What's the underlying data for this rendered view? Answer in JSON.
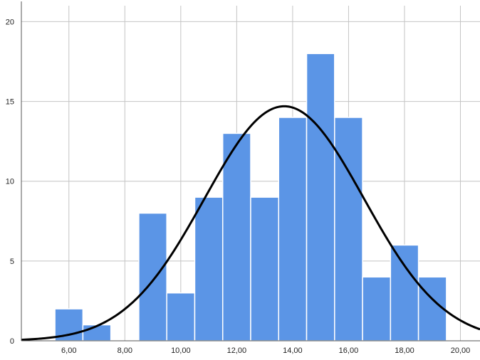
{
  "chart_data": {
    "type": "bar",
    "subtype": "histogram",
    "title": "",
    "xlabel": "",
    "ylabel": "",
    "bin_width": 1,
    "bins": [
      {
        "start": 5.5,
        "end": 6.5,
        "count": 2
      },
      {
        "start": 6.5,
        "end": 7.5,
        "count": 1
      },
      {
        "start": 7.5,
        "end": 8.5,
        "count": 0
      },
      {
        "start": 8.5,
        "end": 9.5,
        "count": 8
      },
      {
        "start": 9.5,
        "end": 10.5,
        "count": 3
      },
      {
        "start": 10.5,
        "end": 11.5,
        "count": 9
      },
      {
        "start": 11.5,
        "end": 12.5,
        "count": 13
      },
      {
        "start": 12.5,
        "end": 13.5,
        "count": 9
      },
      {
        "start": 13.5,
        "end": 14.5,
        "count": 14
      },
      {
        "start": 14.5,
        "end": 15.5,
        "count": 18
      },
      {
        "start": 15.5,
        "end": 16.5,
        "count": 14
      },
      {
        "start": 16.5,
        "end": 17.5,
        "count": 4
      },
      {
        "start": 17.5,
        "end": 18.5,
        "count": 6
      },
      {
        "start": 18.5,
        "end": 19.5,
        "count": 4
      }
    ],
    "normal_curve": {
      "mean": 13.7,
      "sd": 2.85,
      "n": 105
    },
    "xlim": [
      4.3,
      20.7
    ],
    "ylim": [
      0,
      21
    ],
    "x_ticks": [
      6,
      8,
      10,
      12,
      14,
      16,
      18,
      20
    ],
    "x_tick_labels": [
      "6,00",
      "8,00",
      "10,00",
      "12,00",
      "14,00",
      "16,00",
      "18,00",
      "20,00"
    ],
    "y_ticks": [
      0,
      5,
      10,
      15,
      20
    ],
    "y_tick_labels": [
      "0",
      "5",
      "10",
      "15",
      "20"
    ],
    "grid": true,
    "legend": "none",
    "colors": {
      "bar": "#5b95e6",
      "curve": "#000000",
      "grid": "#c4c4c4"
    }
  }
}
